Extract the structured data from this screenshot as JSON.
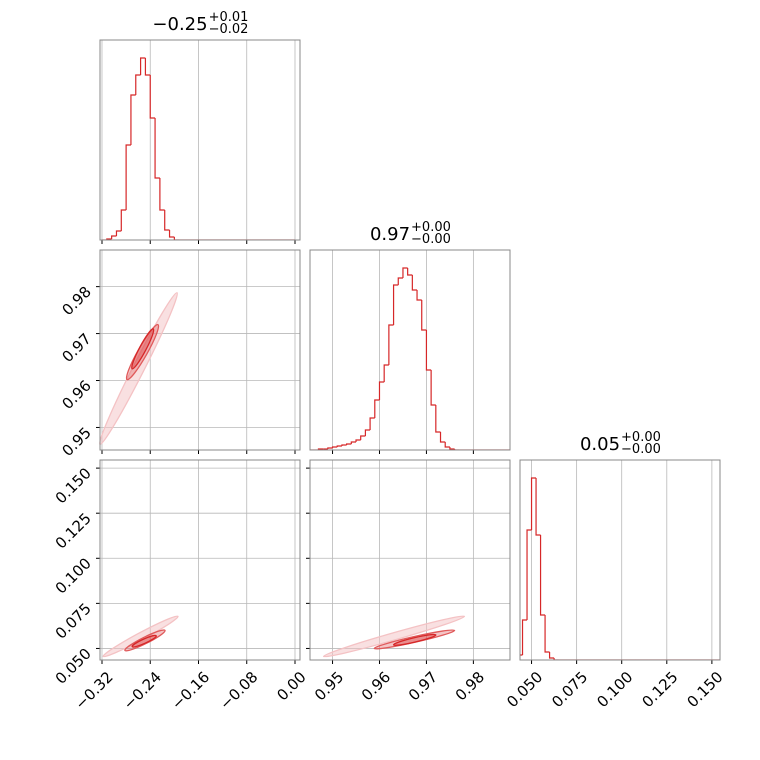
{
  "chart_data": {
    "type": "corner",
    "color": "#d62728",
    "grid": true,
    "parameters": [
      {
        "title": "−0.25",
        "plus": "+0.01",
        "minus": "−0.02",
        "lim": [
          -0.3233,
          0.0083
        ],
        "ticks": [
          {
            "value": -0.32,
            "label": "−0.32"
          },
          {
            "value": -0.24,
            "label": "−0.24"
          },
          {
            "value": -0.16,
            "label": "−0.16"
          },
          {
            "value": -0.08,
            "label": "−0.08"
          },
          {
            "value": 0,
            "label": "0.00"
          }
        ],
        "hist_ylim": [
          0,
          200
        ],
        "bins": [
          -0.32,
          -0.312,
          -0.304,
          -0.296,
          -0.288,
          -0.28,
          -0.272,
          -0.264,
          -0.256,
          -0.248,
          -0.24,
          -0.232,
          -0.224,
          -0.216,
          -0.208,
          -0.2,
          -0.192,
          -0.184,
          -0.176,
          -0.168,
          -0.16,
          -0.152,
          -0.144,
          -0.136,
          -0.128,
          -0.12,
          -0.112,
          -0.104,
          -0.096,
          -0.088,
          -0.08,
          -0.072,
          -0.064,
          -0.056,
          -0.048,
          -0.04,
          -0.032,
          -0.024,
          -0.016,
          -0.008,
          0
        ],
        "counts": [
          0,
          1,
          4,
          9,
          30,
          95,
          145,
          165,
          182,
          165,
          122,
          62,
          30,
          10,
          3,
          0,
          0,
          0,
          0,
          0,
          0,
          0,
          0,
          0,
          0,
          0,
          0,
          0,
          0,
          0,
          0,
          0,
          0,
          0,
          0,
          0,
          0,
          0,
          0,
          0
        ]
      },
      {
        "title": "0.97",
        "plus": "+0.00",
        "minus": "−0.00",
        "lim": [
          0.9452,
          0.9878
        ],
        "ticks": [
          0.95,
          0.96,
          0.97,
          0.98
        ],
        "hist_ylim": [
          0,
          200
        ],
        "bins": [
          0.945,
          0.946,
          0.947,
          0.948,
          0.949,
          0.95,
          0.951,
          0.952,
          0.953,
          0.954,
          0.955,
          0.956,
          0.957,
          0.958,
          0.959,
          0.96,
          0.961,
          0.962,
          0.963,
          0.964,
          0.965,
          0.966,
          0.967,
          0.968,
          0.969,
          0.97,
          0.971,
          0.972,
          0.973,
          0.974,
          0.975,
          0.976,
          0.977,
          0.978,
          0.979,
          0.98,
          0.981,
          0.982,
          0.983,
          0.984,
          0.985,
          0.986,
          0.987,
          0.988
        ],
        "counts": [
          0,
          0,
          1,
          1,
          2,
          3,
          4,
          5,
          6,
          8,
          10,
          14,
          20,
          32,
          50,
          68,
          85,
          125,
          165,
          172,
          182,
          175,
          160,
          150,
          120,
          80,
          45,
          18,
          8,
          3,
          1,
          0,
          0,
          0,
          0,
          0,
          0,
          0,
          0,
          0,
          0,
          0,
          0
        ]
      },
      {
        "title": "0.05",
        "plus": "+0.00",
        "minus": "−0.00",
        "lim": [
          0.0436,
          0.1545
        ],
        "ticks": [
          {
            "value": 0.05,
            "label": "0.050"
          },
          0.075,
          {
            "value": 0.1,
            "label": "0.100"
          },
          0.125,
          {
            "value": 0.15,
            "label": "0.150"
          }
        ],
        "hist_ylim": [
          0,
          200
        ],
        "bins": [
          0.0425,
          0.045,
          0.0475,
          0.05,
          0.0525,
          0.055,
          0.0575,
          0.06,
          0.0625,
          0.065,
          0.0675,
          0.07,
          0.0725,
          0.075,
          0.0775,
          0.08,
          0.0825,
          0.085,
          0.0875,
          0.09,
          0.0925,
          0.095,
          0.0975,
          0.1,
          0.1025,
          0.105,
          0.1075,
          0.11,
          0.1125,
          0.115,
          0.1175,
          0.12,
          0.1225,
          0.125,
          0.1275,
          0.13,
          0.1325,
          0.135,
          0.1375,
          0.14,
          0.1425,
          0.145,
          0.1475,
          0.15,
          0.1525,
          0.155
        ],
        "counts": [
          5,
          40,
          130,
          182,
          125,
          45,
          8,
          2,
          0,
          0,
          0,
          0,
          0,
          0,
          0,
          0,
          0,
          0,
          0,
          0,
          0,
          0,
          0,
          0,
          0,
          0,
          0,
          0,
          0,
          0,
          0,
          0,
          0,
          0,
          0,
          0,
          0,
          0,
          0,
          0,
          0,
          0,
          0,
          0,
          0
        ]
      }
    ],
    "panels": [
      {
        "x_param": 0,
        "y_param": 1,
        "contours": [
          {
            "x": [
              -0.3233,
              -0.1956
            ],
            "y": [
              0.9464,
              0.9787
            ],
            "half_width": 0.0012,
            "color": "#f4c2c4"
          },
          {
            "x": [
              -0.2785,
              -0.2271
            ],
            "y": [
              0.9602,
              0.9719
            ],
            "half_width": 0.001,
            "color": "#e05a5b"
          },
          {
            "x": [
              -0.27,
              -0.235
            ],
            "y": [
              0.9625,
              0.971
            ],
            "half_width": 0.0007,
            "color": "#d62728"
          }
        ]
      },
      {
        "x_param": 0,
        "y_param": 2,
        "contours": [
          {
            "x": [
              -0.318,
              -0.194
            ],
            "y": [
              0.0456,
              0.0678
            ],
            "half_width": 0.002,
            "color": "#f4c2c4"
          },
          {
            "x": [
              -0.282,
              -0.2155
            ],
            "y": [
              0.0489,
              0.06
            ],
            "half_width": 0.0018,
            "color": "#e05a5b"
          },
          {
            "x": [
              -0.27,
              -0.23
            ],
            "y": [
              0.051,
              0.057
            ],
            "half_width": 0.0012,
            "color": "#d62728"
          }
        ]
      },
      {
        "x_param": 1,
        "y_param": 2,
        "contours": [
          {
            "x": [
              0.9481,
              0.9781
            ],
            "y": [
              0.0456,
              0.0678
            ],
            "half_width": 0.002,
            "color": "#f4c2c4"
          },
          {
            "x": [
              0.9589,
              0.976
            ],
            "y": [
              0.05,
              0.06
            ],
            "half_width": 0.0016,
            "color": "#e05a5b"
          },
          {
            "x": [
              0.963,
              0.972
            ],
            "y": [
              0.052,
              0.0575
            ],
            "half_width": 0.0012,
            "color": "#d62728"
          }
        ]
      }
    ]
  }
}
